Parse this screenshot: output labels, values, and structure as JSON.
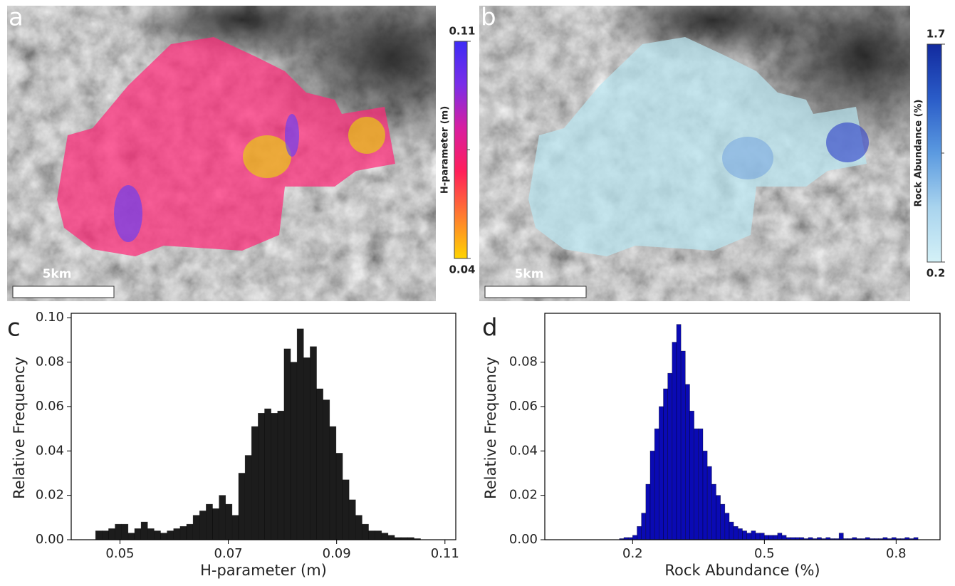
{
  "maps": [
    {
      "label": "a",
      "colorbar_label": "H-parameter (m)",
      "clim": [
        0.04,
        0.11
      ],
      "cticks": [
        0.04,
        0.11
      ],
      "scale_bar": "5km",
      "colormap": [
        "#ffd400",
        "#ff7a30",
        "#ff1f5a",
        "#d81ea0",
        "#7a2ee8",
        "#3d2cf5"
      ]
    },
    {
      "label": "b",
      "colorbar_label": "Rock Abundance (%)",
      "clim": [
        0.2,
        1.7
      ],
      "cticks": [
        0.2,
        1.7
      ],
      "scale_bar": "5km",
      "colormap": [
        "#d4f1f7",
        "#a9d4ee",
        "#5b9ae0",
        "#2a5cc8",
        "#122a9e"
      ]
    }
  ],
  "chart_data": [
    {
      "type": "histogram",
      "label": "c",
      "xlabel": "H-parameter (m)",
      "ylabel": "Relative Frequency",
      "color": "#1c1c1c",
      "bins": [
        0.0455,
        0.0467,
        0.0479,
        0.0491,
        0.0503,
        0.0515,
        0.0527,
        0.0539,
        0.0551,
        0.0563,
        0.0575,
        0.0587,
        0.0599,
        0.0611,
        0.0623,
        0.0635,
        0.0647,
        0.0659,
        0.0671,
        0.0683,
        0.0695,
        0.0707,
        0.0719,
        0.0731,
        0.0743,
        0.0755,
        0.0767,
        0.0779,
        0.0791,
        0.0803,
        0.0815,
        0.0827,
        0.0839,
        0.0851,
        0.0863,
        0.0875,
        0.0887,
        0.0899,
        0.0911,
        0.0923,
        0.0935,
        0.0947,
        0.0959,
        0.0971,
        0.0983,
        0.0995,
        0.1007,
        0.1019,
        0.1031,
        0.1043,
        0.1055
      ],
      "counts": [
        0.004,
        0.004,
        0.005,
        0.007,
        0.007,
        0.003,
        0.005,
        0.008,
        0.005,
        0.004,
        0.003,
        0.004,
        0.005,
        0.006,
        0.007,
        0.011,
        0.013,
        0.016,
        0.014,
        0.02,
        0.016,
        0.011,
        0.03,
        0.038,
        0.051,
        0.057,
        0.059,
        0.057,
        0.058,
        0.086,
        0.08,
        0.095,
        0.082,
        0.087,
        0.068,
        0.063,
        0.051,
        0.039,
        0.027,
        0.018,
        0.011,
        0.007,
        0.004,
        0.004,
        0.003,
        0.002,
        0.001,
        0.001,
        0.001,
        0.0005
      ],
      "xlim": [
        0.041,
        0.112
      ],
      "xticks": [
        0.05,
        0.07,
        0.09,
        0.11
      ],
      "ylim": [
        0,
        0.102
      ],
      "yticks": [
        {
          "value": 0,
          "label": "0.00"
        },
        0.02,
        0.04,
        0.06,
        0.08,
        {
          "value": 0.1,
          "label": "0.10"
        }
      ]
    },
    {
      "type": "histogram",
      "label": "d",
      "xlabel": "Rock Abundance (%)",
      "ylabel": "Relative Frequency",
      "color": "#0a0ab4",
      "bins": [
        0.17,
        0.18,
        0.19,
        0.2,
        0.21,
        0.22,
        0.23,
        0.24,
        0.25,
        0.26,
        0.27,
        0.28,
        0.29,
        0.3,
        0.31,
        0.32,
        0.33,
        0.34,
        0.35,
        0.36,
        0.37,
        0.38,
        0.39,
        0.4,
        0.41,
        0.42,
        0.43,
        0.44,
        0.45,
        0.46,
        0.47,
        0.48,
        0.49,
        0.5,
        0.51,
        0.52,
        0.53,
        0.54,
        0.55,
        0.56,
        0.57,
        0.58,
        0.59,
        0.6,
        0.61,
        0.62,
        0.63,
        0.64,
        0.65,
        0.66,
        0.67,
        0.68,
        0.69,
        0.7,
        0.71,
        0.72,
        0.73,
        0.74,
        0.75,
        0.76,
        0.77,
        0.78,
        0.79,
        0.8,
        0.81,
        0.82,
        0.83,
        0.84,
        0.85
      ],
      "counts": [
        0.0005,
        0.001,
        0.001,
        0.002,
        0.006,
        0.012,
        0.025,
        0.04,
        0.05,
        0.06,
        0.068,
        0.075,
        0.089,
        0.097,
        0.085,
        0.07,
        0.058,
        0.05,
        0.05,
        0.04,
        0.033,
        0.025,
        0.02,
        0.016,
        0.012,
        0.008,
        0.006,
        0.005,
        0.004,
        0.003,
        0.004,
        0.003,
        0.003,
        0.002,
        0.002,
        0.002,
        0.003,
        0.002,
        0.001,
        0.001,
        0.001,
        0.001,
        0.0005,
        0.001,
        0.0005,
        0.001,
        0.0005,
        0.001,
        0.0005,
        0.0005,
        0.003,
        0.0005,
        0.0005,
        0.001,
        0.0005,
        0.0005,
        0.001,
        0.0005,
        0.0005,
        0.0005,
        0.001,
        0.0005,
        0.001,
        0.0005,
        0.0005,
        0.001,
        0.0005,
        0.001
      ],
      "xlim": [
        0,
        0.9
      ],
      "xticks": [
        0.2,
        0.5,
        0.8
      ],
      "ylim": [
        0,
        0.102
      ],
      "yticks": [
        {
          "value": 0,
          "label": "0.00"
        },
        0.02,
        0.04,
        0.06,
        0.08
      ]
    }
  ]
}
